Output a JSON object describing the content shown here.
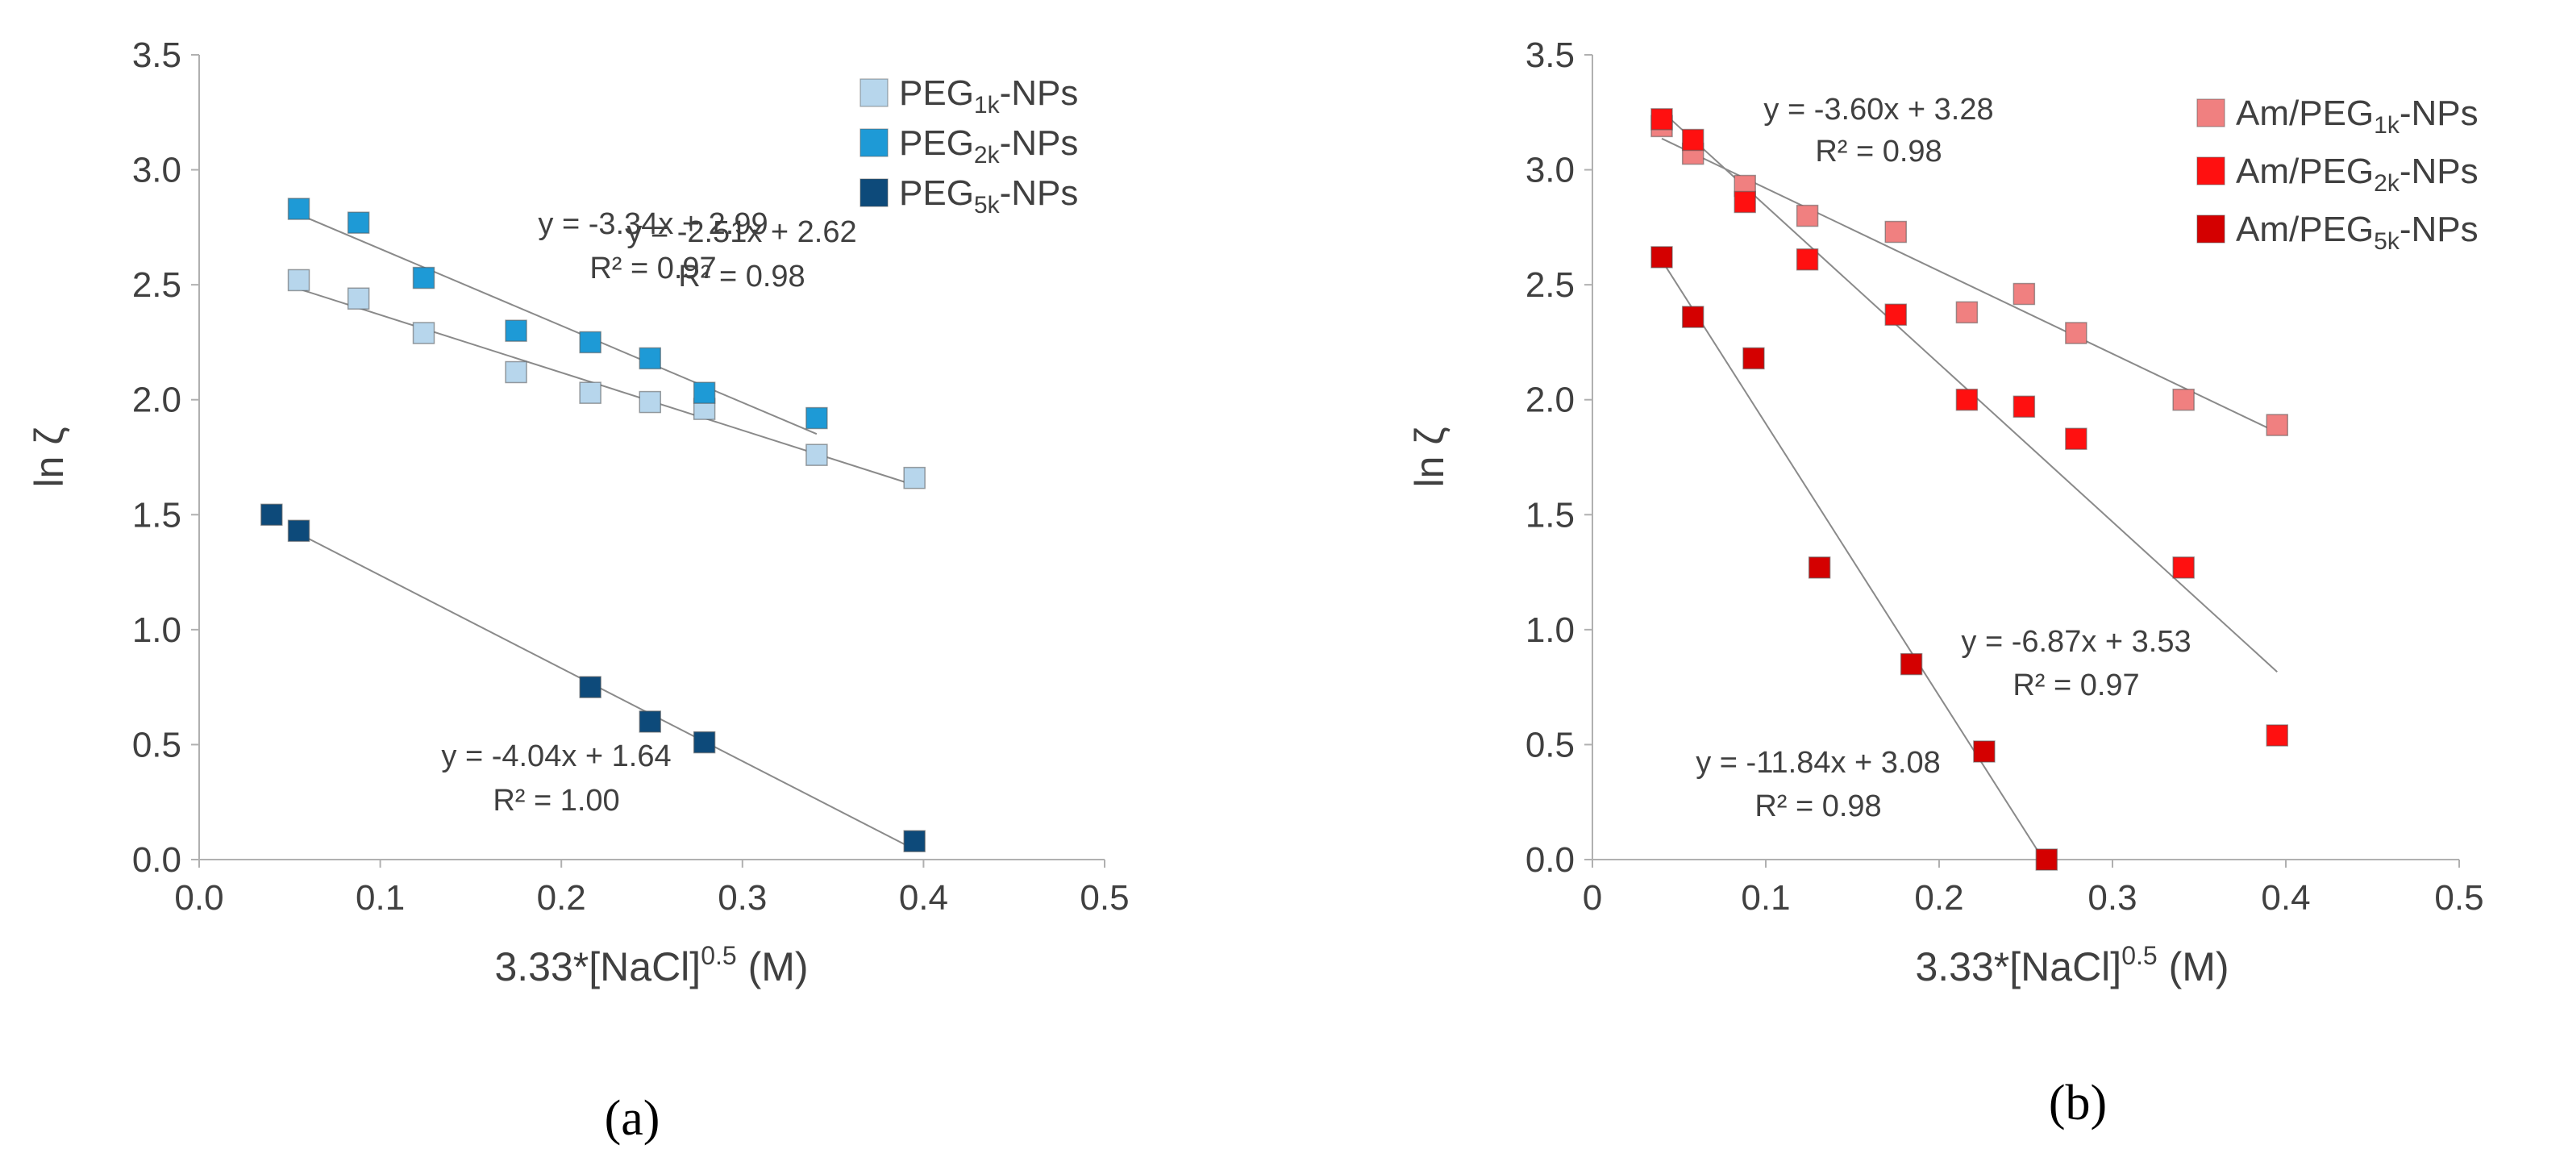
{
  "chart_data": [
    {
      "type": "scatter",
      "panel_label": "(a)",
      "xlabel_main": "3.33*[NaCl]",
      "xlabel_sup": "0.5",
      "xlabel_tail": " (M)",
      "ylabel": "ln ζ",
      "xlim": [
        0.0,
        0.5
      ],
      "ylim": [
        0.0,
        3.5
      ],
      "xticks": [
        "0.0",
        "0.1",
        "0.2",
        "0.3",
        "0.4",
        "0.5"
      ],
      "yticks": [
        "0.0",
        "0.5",
        "1.0",
        "1.5",
        "2.0",
        "2.5",
        "3.0",
        "3.5"
      ],
      "legend_position": "top-right",
      "series": [
        {
          "name_prefix": "PEG",
          "name_sub": "1k",
          "name_suffix": "-NPs",
          "color": "#b7d6ec",
          "points": [
            [
              0.055,
              2.52
            ],
            [
              0.088,
              2.44
            ],
            [
              0.124,
              2.29
            ],
            [
              0.175,
              2.12
            ],
            [
              0.216,
              2.03
            ],
            [
              0.249,
              1.99
            ],
            [
              0.279,
              1.96
            ],
            [
              0.341,
              1.76
            ],
            [
              0.395,
              1.66
            ]
          ],
          "fit": {
            "slope": -2.51,
            "intercept": 2.62,
            "x_range": [
              0.055,
              0.395
            ],
            "equation": "y = -2.51x + 2.62",
            "r2": "R² = 0.98"
          }
        },
        {
          "name_prefix": "PEG",
          "name_sub": "2k",
          "name_suffix": "-NPs",
          "color": "#1e9ad6",
          "points": [
            [
              0.055,
              2.83
            ],
            [
              0.088,
              2.77
            ],
            [
              0.124,
              2.53
            ],
            [
              0.175,
              2.3
            ],
            [
              0.216,
              2.25
            ],
            [
              0.249,
              2.18
            ],
            [
              0.279,
              2.03
            ],
            [
              0.341,
              1.92
            ]
          ],
          "fit": {
            "slope": -3.34,
            "intercept": 2.99,
            "x_range": [
              0.055,
              0.341
            ],
            "equation": "y = -3.34x + 2.99",
            "r2": "R² = 0.97"
          }
        },
        {
          "name_prefix": "PEG",
          "name_sub": "5k",
          "name_suffix": "-NPs",
          "color": "#0d4a7a",
          "points": [
            [
              0.04,
              1.5
            ],
            [
              0.055,
              1.43
            ],
            [
              0.216,
              0.75
            ],
            [
              0.249,
              0.6
            ],
            [
              0.279,
              0.51
            ],
            [
              0.395,
              0.08
            ]
          ],
          "fit": {
            "slope": -4.04,
            "intercept": 1.64,
            "x_range": [
              0.055,
              0.395
            ],
            "equation": "y = -4.04x + 1.64",
            "r2": "R² = 1.00"
          }
        }
      ]
    },
    {
      "type": "scatter",
      "panel_label": "(b)",
      "xlabel_main": "3.33*[NaCl]",
      "xlabel_sup": "0.5",
      "xlabel_tail": " (M)",
      "ylabel": "ln ζ",
      "xlim": [
        0.0,
        0.5
      ],
      "ylim": [
        0.0,
        3.5
      ],
      "xticks": [
        "0",
        "0.1",
        "0.2",
        "0.3",
        "0.4",
        "0.5"
      ],
      "yticks": [
        "0.0",
        "0.5",
        "1.0",
        "1.5",
        "2.0",
        "2.5",
        "3.0",
        "3.5"
      ],
      "legend_position": "top-right",
      "series": [
        {
          "name_prefix": "Am/PEG",
          "name_sub": "1k",
          "name_suffix": "-NPs",
          "color": "#f08080",
          "points": [
            [
              0.04,
              3.19
            ],
            [
              0.058,
              3.07
            ],
            [
              0.088,
              2.93
            ],
            [
              0.124,
              2.8
            ],
            [
              0.175,
              2.73
            ],
            [
              0.216,
              2.38
            ],
            [
              0.249,
              2.46
            ],
            [
              0.279,
              2.29
            ],
            [
              0.341,
              2.0
            ],
            [
              0.395,
              1.89
            ]
          ],
          "fit": {
            "slope": -3.6,
            "intercept": 3.28,
            "x_range": [
              0.04,
              0.395
            ],
            "equation": "y = -3.60x + 3.28",
            "r2": "R² = 0.98"
          }
        },
        {
          "name_prefix": "Am/PEG",
          "name_sub": "2k",
          "name_suffix": "-NPs",
          "color": "#ff1010",
          "points": [
            [
              0.04,
              3.22
            ],
            [
              0.058,
              3.13
            ],
            [
              0.088,
              2.86
            ],
            [
              0.124,
              2.61
            ],
            [
              0.175,
              2.37
            ],
            [
              0.216,
              2.0
            ],
            [
              0.249,
              1.97
            ],
            [
              0.279,
              1.83
            ],
            [
              0.341,
              1.27
            ],
            [
              0.395,
              0.54
            ]
          ],
          "fit": {
            "slope": -6.87,
            "intercept": 3.53,
            "x_range": [
              0.04,
              0.395
            ],
            "equation": "y = -6.87x + 3.53",
            "r2": "R² = 0.97"
          }
        },
        {
          "name_prefix": "Am/PEG",
          "name_sub": "5k",
          "name_suffix": "-NPs",
          "color": "#d40000",
          "points": [
            [
              0.04,
              2.62
            ],
            [
              0.058,
              2.36
            ],
            [
              0.093,
              2.18
            ],
            [
              0.131,
              1.27
            ],
            [
              0.184,
              0.85
            ],
            [
              0.226,
              0.47
            ],
            [
              0.262,
              0.0
            ]
          ],
          "fit": {
            "slope": -11.84,
            "intercept": 3.08,
            "x_range": [
              0.04,
              0.262
            ],
            "equation": "y = -11.84x + 3.08",
            "r2": "R² = 0.98"
          }
        }
      ]
    }
  ]
}
